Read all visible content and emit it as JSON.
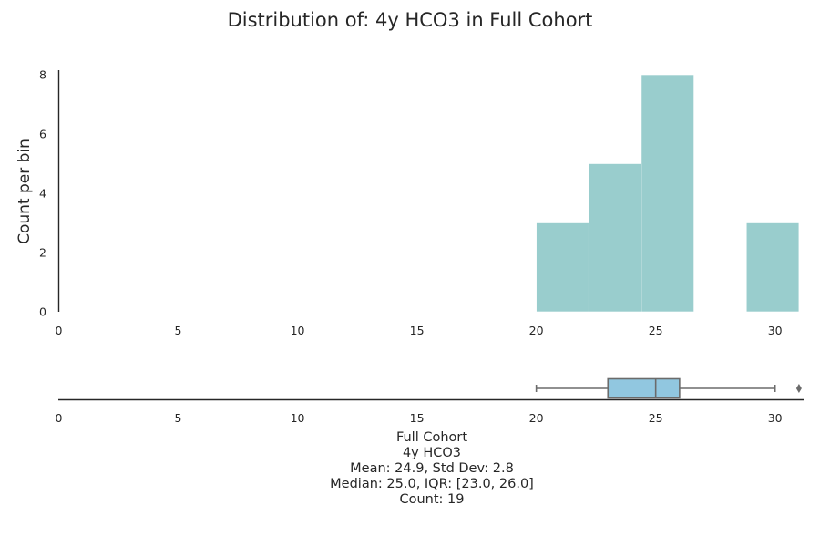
{
  "chart_data": {
    "type": "histogram",
    "title": "Distribution of: 4y HCO3 in Full Cohort",
    "ylabel": "Count per bin",
    "xlim": [
      0,
      31.5
    ],
    "ylim": [
      0,
      8.4
    ],
    "x_ticks": [
      0,
      5,
      10,
      15,
      20,
      25,
      30
    ],
    "y_ticks": [
      0,
      2,
      4,
      6,
      8
    ],
    "bar_color": "#99cdcd",
    "box_color": "#91c7e0",
    "bins": [
      {
        "x0": 20.0,
        "x1": 22.2,
        "count": 3
      },
      {
        "x0": 22.2,
        "x1": 24.4,
        "count": 5
      },
      {
        "x0": 24.4,
        "x1": 26.6,
        "count": 8
      },
      {
        "x0": 26.6,
        "x1": 28.8,
        "count": 0
      },
      {
        "x0": 28.8,
        "x1": 31.0,
        "count": 3
      }
    ],
    "boxplot": {
      "whisker_low": 20.0,
      "q1": 23.0,
      "median": 25.0,
      "q3": 26.0,
      "whisker_high": 30.0,
      "outliers": [
        31.0
      ]
    },
    "caption": [
      "Full Cohort",
      "4y HCO3",
      "Mean: 24.9, Std Dev: 2.8",
      "Median: 25.0, IQR: [23.0, 26.0]",
      "Count: 19"
    ]
  }
}
